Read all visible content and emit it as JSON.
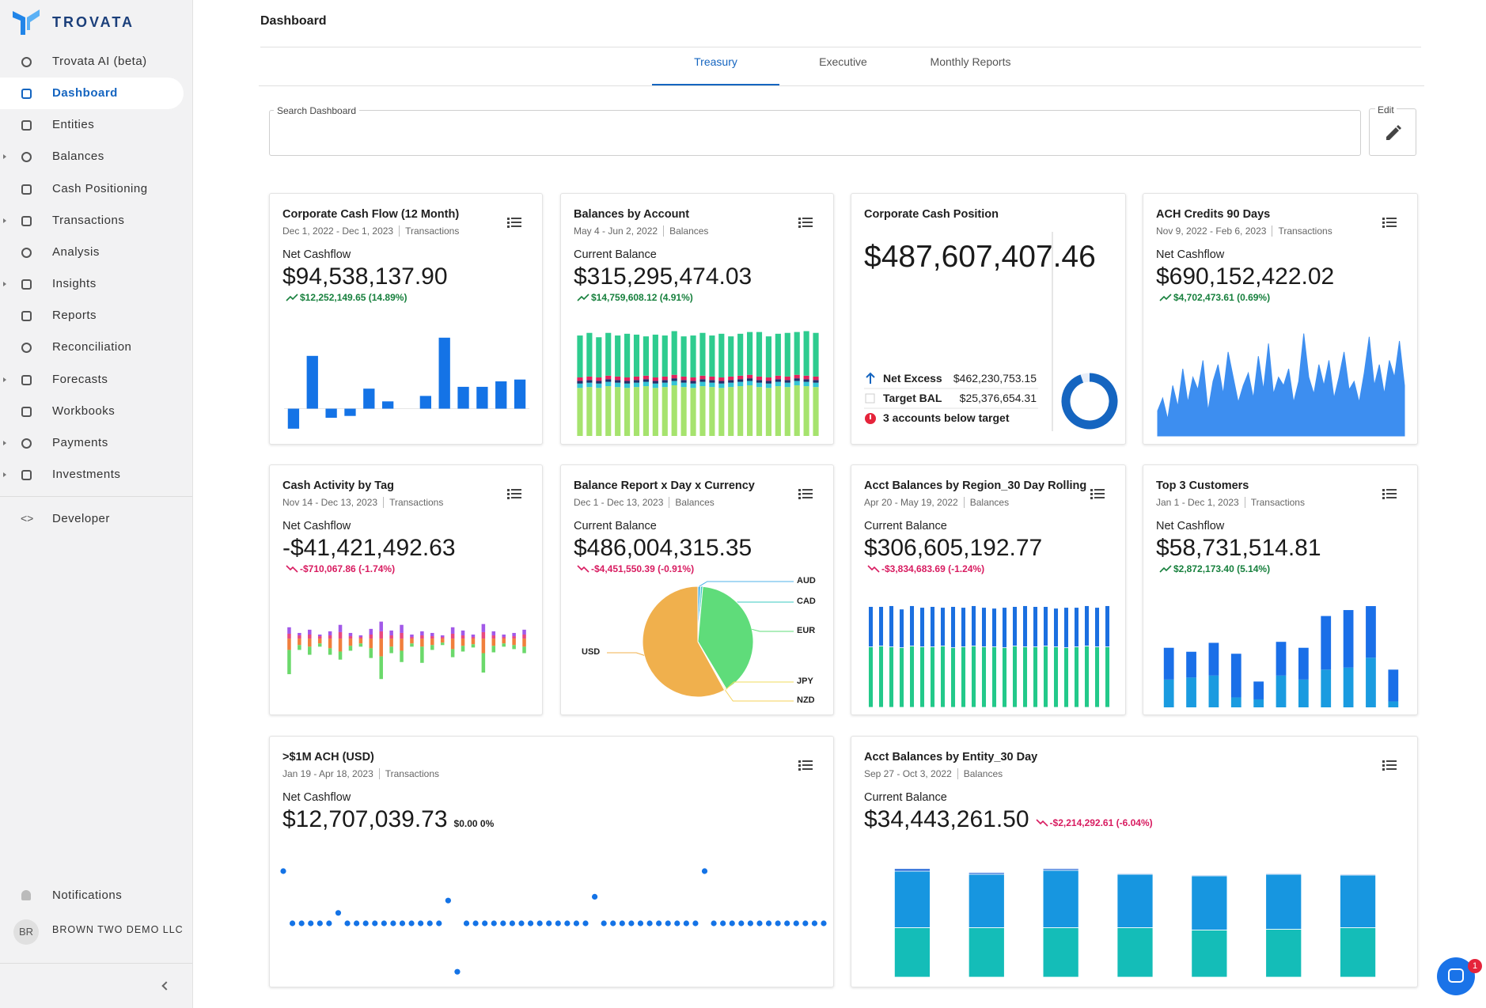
{
  "sidebar": {
    "brand": "TROVATA",
    "items": [
      {
        "label": "Trovata AI (beta)"
      },
      {
        "label": "Dashboard",
        "active": true
      },
      {
        "label": "Entities"
      },
      {
        "label": "Balances",
        "expandable": true
      },
      {
        "label": "Cash Positioning"
      },
      {
        "label": "Transactions",
        "expandable": true
      },
      {
        "label": "Analysis"
      },
      {
        "label": "Insights",
        "expandable": true
      },
      {
        "label": "Reports"
      },
      {
        "label": "Reconciliation"
      },
      {
        "label": "Forecasts",
        "expandable": true
      },
      {
        "label": "Workbooks"
      },
      {
        "label": "Payments",
        "expandable": true
      },
      {
        "label": "Investments",
        "expandable": true
      }
    ],
    "developer": "Developer",
    "notifications": "Notifications",
    "user_initials": "BR",
    "user_name": "BROWN TWO DEMO LLC"
  },
  "header": {
    "title": "Dashboard",
    "tabs": [
      {
        "label": "Treasury",
        "active": true
      },
      {
        "label": "Executive"
      },
      {
        "label": "Monthly Reports"
      }
    ],
    "search_label": "Search Dashboard",
    "edit_label": "Edit"
  },
  "chat_badge": 1,
  "widgets": [
    {
      "title": "Corporate Cash Flow (12 Month)",
      "date_range": "Dec 1, 2022 - Dec 1, 2023",
      "source": "Transactions",
      "menu": true,
      "metric_label": "Net Cashflow",
      "value": "$94,538,137.90",
      "change": "$12,252,149.65 (14.89%)",
      "trend": "up",
      "chart": {
        "type": "bar",
        "color": "#1473e6",
        "ylim": [
          -15,
          45
        ],
        "zero_line": true,
        "values": [
          -11,
          29,
          -5,
          -4,
          11,
          4,
          0,
          7,
          39,
          12,
          12,
          15,
          16
        ]
      }
    },
    {
      "title": "Balances by Account",
      "date_range": "May 4 - Jun 2, 2022",
      "source": "Balances",
      "menu": true,
      "metric_label": "Current Balance",
      "value": "$315,295,474.03",
      "change": "$14,759,608.12 (4.91%)",
      "trend": "up",
      "chart": {
        "type": "stacked",
        "ylim": [
          0,
          125
        ],
        "series": [
          {
            "color": "#a6e36e",
            "values": [
              55,
              56,
              55,
              57,
              56,
              55,
              56,
              57,
              55,
              56,
              58,
              56,
              55,
              57,
              56,
              55,
              56,
              57,
              58,
              56,
              55,
              57,
              56,
              58,
              57,
              56
            ]
          },
          {
            "color": "#35c4d6",
            "values": [
              5,
              5,
              5,
              5,
              5,
              5,
              5,
              5,
              5,
              5,
              5,
              5,
              5,
              5,
              5,
              5,
              5,
              5,
              5,
              5,
              5,
              5,
              5,
              5,
              5,
              5
            ]
          },
          {
            "color": "#23306b",
            "values": [
              3,
              3,
              3,
              3,
              3,
              3,
              3,
              3,
              3,
              3,
              3,
              3,
              3,
              3,
              3,
              3,
              3,
              3,
              3,
              3,
              3,
              3,
              3,
              3,
              3,
              3
            ]
          },
          {
            "color": "#e0245e",
            "values": [
              4,
              4,
              4,
              4,
              4,
              4,
              4,
              4,
              4,
              4,
              4,
              4,
              4,
              4,
              4,
              4,
              4,
              4,
              4,
              4,
              4,
              4,
              4,
              4,
              4,
              4
            ]
          },
          {
            "color": "#2ecc8f",
            "values": [
              48,
              50,
              46,
              49,
              47,
              50,
              48,
              45,
              49,
              47,
              50,
              46,
              48,
              49,
              47,
              50,
              46,
              48,
              49,
              51,
              47,
              48,
              50,
              49,
              51,
              50
            ]
          }
        ]
      }
    },
    {
      "title": "Corporate Cash Position",
      "value": "$487,607,407.46",
      "rows": [
        {
          "label": "Net Excess",
          "value": 462230753.15,
          "value_label": "$462,230,753.15",
          "color": "#1565c0"
        },
        {
          "label": "Target BAL",
          "value": 25376654.31,
          "value_label": "$25,376,654.31",
          "color": "#e8eef8"
        }
      ],
      "alert": "3 accounts below target",
      "chart": {
        "type": "donut"
      }
    },
    {
      "title": "ACH Credits 90 Days",
      "date_range": "Nov 9, 2022 - Feb 6, 2023",
      "source": "Transactions",
      "menu": true,
      "metric_label": "Net Cashflow",
      "value": "$690,152,422.02",
      "change": "$4,702,473.61 (0.69%)",
      "trend": "up",
      "chart": {
        "type": "area",
        "color": "#3d8ef0",
        "ylim": [
          0,
          130
        ],
        "values": [
          30,
          45,
          20,
          60,
          35,
          80,
          40,
          70,
          55,
          90,
          30,
          65,
          85,
          50,
          100,
          70,
          40,
          60,
          75,
          45,
          95,
          55,
          110,
          50,
          70,
          60,
          80,
          40,
          65,
          122,
          70,
          50,
          85,
          60,
          90,
          45,
          70,
          100,
          55,
          65,
          40,
          75,
          118,
          60,
          85,
          50,
          90,
          70,
          113,
          60
        ]
      }
    },
    {
      "title": "Cash Activity by Tag",
      "date_range": "Nov 14 - Dec 13, 2023",
      "source": "Transactions",
      "menu": true,
      "metric_label": "Net Cashflow",
      "value": "-$41,421,492.63",
      "change": "-$710,067.86 (-1.74%)",
      "trend": "down",
      "chart": {
        "type": "stacked",
        "ylim": [
          -85,
          50
        ],
        "bar_width": 0.35,
        "series": [
          {
            "color": "#e84a7f",
            "values": [
              6,
              4,
              5,
              3,
              4,
              8,
              3,
              2,
              5,
              9,
              4,
              7,
              2,
              4,
              3,
              2,
              6,
              4,
              2,
              8,
              4,
              2,
              3,
              5
            ]
          },
          {
            "color": "#a259e8",
            "values": [
              8,
              3,
              6,
              2,
              5,
              9,
              4,
              2,
              7,
              12,
              6,
              10,
              3,
              5,
              4,
              2,
              8,
              6,
              3,
              10,
              5,
              3,
              4,
              6
            ]
          },
          {
            "color": "#f07f3c",
            "values": [
              -14,
              -8,
              -10,
              -6,
              -12,
              -16,
              -9,
              -6,
              -12,
              -22,
              -10,
              -15,
              -6,
              -10,
              -8,
              -5,
              -13,
              -9,
              -7,
              -18,
              -9,
              -6,
              -8,
              -10
            ]
          },
          {
            "color": "#6bd96b",
            "values": [
              -30,
              -6,
              -10,
              -4,
              -8,
              -10,
              -6,
              -4,
              -12,
              -28,
              -8,
              -14,
              -4,
              -20,
              -6,
              -3,
              -10,
              -7,
              -4,
              -24,
              -8,
              -4,
              -5,
              -8
            ]
          }
        ]
      }
    },
    {
      "title": "Balance Report x Day x Currency",
      "date_range": "Dec 1 - Dec 13, 2023",
      "source": "Balances",
      "menu": true,
      "metric_label": "Current Balance",
      "value": "$486,004,315.35",
      "change": "-$4,451,550.39 (-0.91%)",
      "trend": "down",
      "chart": {
        "type": "pie",
        "categories": [
          "AUD",
          "CAD",
          "EUR",
          "JPY",
          "NZD",
          "USD"
        ],
        "values": [
          0.8,
          0.6,
          40,
          0.3,
          0.3,
          58
        ],
        "colors": [
          "#4fb3e8",
          "#38c9c0",
          "#5fdc7a",
          "#f2de5c",
          "#f5d25a",
          "#f0b04d"
        ]
      }
    },
    {
      "title": "Acct Balances by Region_30 Day Rolling",
      "date_range": "Apr 20 - May 19, 2022",
      "source": "Balances",
      "menu": true,
      "metric_label": "Current Balance",
      "value": "$306,605,192.77",
      "change": "-$3,834,683.69 (-1.24%)",
      "trend": "down",
      "chart": {
        "type": "stacked",
        "ylim": [
          0,
          130
        ],
        "bar_width": 0.45,
        "segment_gap": true,
        "series": [
          {
            "color": "#23c98a",
            "values": [
              72,
              73,
              72,
              71,
              73,
              72,
              72,
              73,
              71,
              72,
              73,
              72,
              72,
              71,
              73,
              72,
              72,
              73,
              72,
              71,
              72,
              73,
              72,
              72
            ]
          },
          {
            "color": "#1b6fe0",
            "values": [
              48,
              47,
              49,
              46,
              48,
              47,
              48,
              46,
              49,
              47,
              48,
              47,
              46,
              48,
              47,
              49,
              48,
              47,
              46,
              48,
              47,
              48,
              47,
              49
            ]
          }
        ]
      }
    },
    {
      "title": "Top 3 Customers",
      "date_range": "Jan 1 - Dec 1, 2023",
      "source": "Transactions",
      "menu": true,
      "metric_label": "Net Cashflow",
      "value": "$58,731,514.81",
      "change": "$2,872,173.40 (5.14%)",
      "trend": "up",
      "chart": {
        "type": "stacked",
        "ylim": [
          0,
          110
        ],
        "bar_width": 0.45,
        "series": [
          {
            "color": "#1a9be0",
            "values": [
              28,
              30,
              32,
              10,
              8,
              32,
              28,
              38,
              40,
              50,
              6
            ]
          },
          {
            "color": "#1a6fe8",
            "values": [
              32,
              26,
              33,
              44,
              18,
              34,
              32,
              54,
              58,
              52,
              32
            ]
          }
        ]
      }
    },
    {
      "title": ">$1M ACH (USD)",
      "date_range": "Jan 19 - Apr 18, 2023",
      "source": "Transactions",
      "menu": true,
      "metric_label": "Net Cashflow",
      "value": "$12,707,039.73",
      "change": "$0.00 0%",
      "trend": "flat",
      "change_position": "inline",
      "chart": {
        "type": "scatter",
        "color": "#1473e6",
        "ylim": [
          -60,
          60
        ],
        "values": [
          55,
          0,
          0,
          0,
          0,
          0,
          11,
          0,
          0,
          0,
          0,
          0,
          0,
          0,
          0,
          0,
          0,
          0,
          24,
          -51,
          0,
          0,
          0,
          0,
          0,
          0,
          0,
          0,
          0,
          0,
          0,
          0,
          0,
          0,
          28,
          0,
          0,
          0,
          0,
          0,
          0,
          0,
          0,
          0,
          0,
          0,
          55,
          0,
          0,
          0,
          0,
          0,
          0,
          0,
          0,
          0,
          0,
          0,
          0,
          0
        ]
      }
    },
    {
      "title": "Acct Balances by Entity_30 Day",
      "date_range": "Sep 27 - Oct 3, 2022",
      "source": "Balances",
      "menu": true,
      "metric_label": "Current Balance",
      "value": "$34,443,261.50",
      "change": "-$2,214,292.61 (-6.04%)",
      "trend": "down",
      "change_position": "inline",
      "chart": {
        "type": "stacked",
        "ylim": [
          0,
          145
        ],
        "bar_width": 0.48,
        "segment_gap": true,
        "series": [
          {
            "color": "#14bdb8",
            "values": [
              63,
              63,
              63,
              63,
              60,
              61,
              63
            ]
          },
          {
            "color": "#1796e0",
            "values": [
              72,
              68,
              73,
              68,
              69,
              70,
              67
            ]
          },
          {
            "color": "#1a5fd6",
            "values": [
              3,
              2,
              2,
              1,
              1,
              1,
              1
            ]
          }
        ]
      }
    }
  ]
}
